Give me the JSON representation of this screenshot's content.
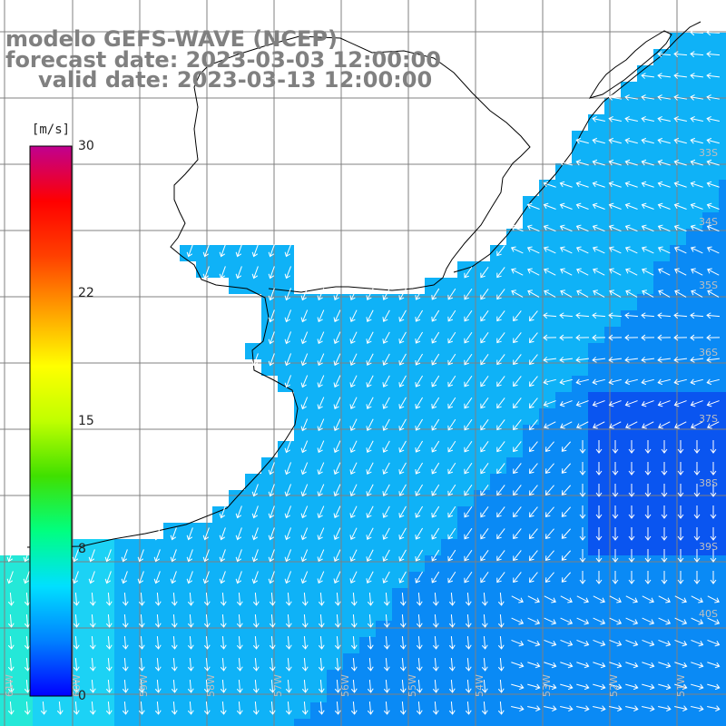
{
  "title": {
    "line1": "modelo GEFS-WAVE (NCEP)",
    "line2": "forecast date: 2023-03-03 12:00:00",
    "line3": "valid date: 2023-03-13 12:00:00"
  },
  "colorbar": {
    "unit": "m/s",
    "min": 0,
    "max": 30,
    "ticks": [
      "30",
      "22",
      "15",
      "8",
      "0"
    ],
    "tick_values": [
      30,
      22,
      15,
      8,
      0
    ],
    "colors": [
      "#0000ff",
      "#0080ff",
      "#00e0ff",
      "#00ff80",
      "#40e000",
      "#c0ff00",
      "#ffff00",
      "#ffa000",
      "#ff4000",
      "#ff0000",
      "#c00090"
    ]
  },
  "map": {
    "variable": "wind speed and direction",
    "lat_labels": [
      "33S",
      "34S",
      "35S",
      "36S",
      "37S",
      "38S",
      "39S",
      "40S"
    ],
    "lon_labels": [
      "61W",
      "60W",
      "59W",
      "58W",
      "57W",
      "56W",
      "55W",
      "54W",
      "53W",
      "52W",
      "51W"
    ],
    "ocean_colors": {
      "far_offshore": "#0a55f0",
      "offshore": "#0a8af5",
      "shelf": "#0fb2f7",
      "nearshore": "#1cd2f5",
      "coastal_fringe": "#24e8d8"
    },
    "land_color": "#ffffff",
    "grid_color": "#808080",
    "coastline_color": "#000000",
    "arrow_color": "#ffffff"
  }
}
